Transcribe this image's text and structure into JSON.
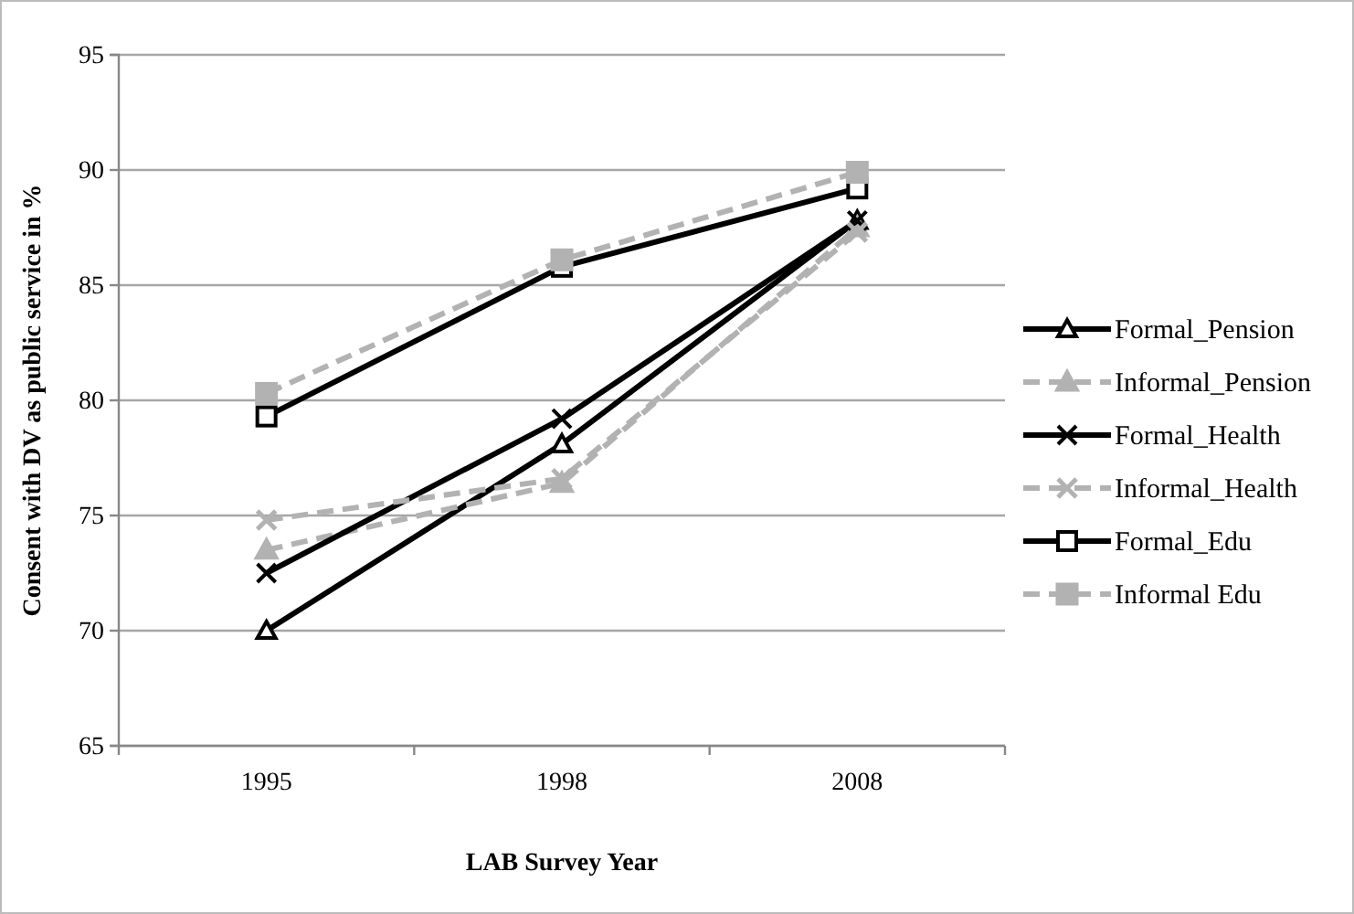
{
  "chart_data": {
    "type": "line",
    "xlabel": "LAB Survey Year",
    "ylabel": "Consent with DV as public  service in %",
    "categories": [
      "1995",
      "1998",
      "2008"
    ],
    "ylim": [
      65,
      95
    ],
    "yticks": [
      65,
      70,
      75,
      80,
      85,
      90,
      95
    ],
    "grid": "y",
    "legend": "right",
    "series": [
      {
        "name": "Formal_Pension",
        "color": "#000000",
        "marker": "triangle",
        "line_style": "solid",
        "values": [
          70.0,
          78.1,
          87.8
        ]
      },
      {
        "name": "Informal_Pension",
        "color": "#b2b2b2",
        "marker": "triangle",
        "line_style": "dashed",
        "values": [
          73.5,
          76.4,
          87.5
        ]
      },
      {
        "name": "Formal_Health",
        "color": "#000000",
        "marker": "cross",
        "line_style": "solid",
        "values": [
          72.5,
          79.2,
          87.8
        ]
      },
      {
        "name": "Informal_Health",
        "color": "#b2b2b2",
        "marker": "cross",
        "line_style": "dashed",
        "values": [
          74.8,
          76.6,
          87.3
        ]
      },
      {
        "name": "Formal_Edu",
        "color": "#000000",
        "marker": "square",
        "line_style": "solid",
        "values": [
          79.3,
          85.8,
          89.2
        ]
      },
      {
        "name": "Informal Edu",
        "color": "#b2b2b2",
        "marker": "square",
        "line_style": "dashed",
        "values": [
          80.3,
          86.1,
          89.9
        ]
      }
    ]
  }
}
